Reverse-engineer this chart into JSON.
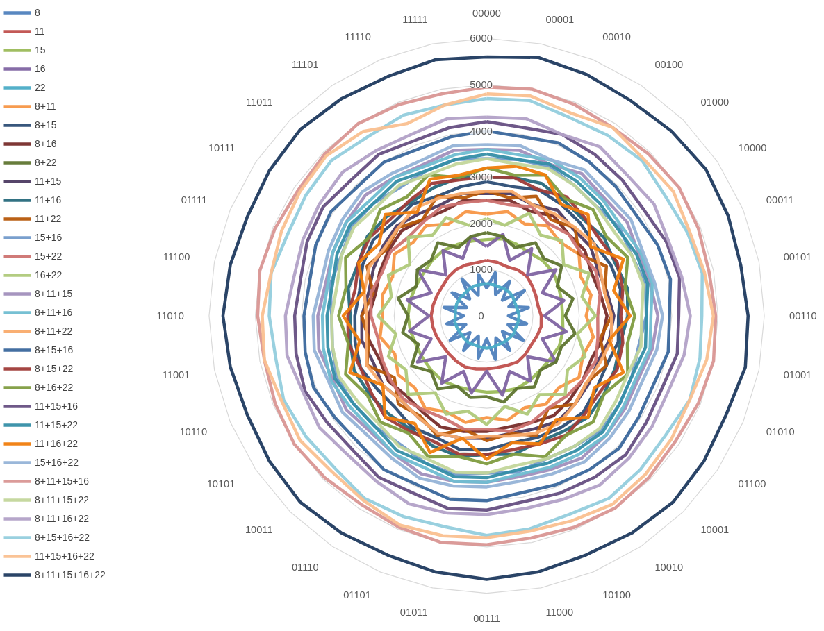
{
  "chart_data": {
    "type": "radar",
    "categories": [
      "00000",
      "00001",
      "00010",
      "00100",
      "01000",
      "10000",
      "00011",
      "00101",
      "00110",
      "01001",
      "01010",
      "01100",
      "10001",
      "10010",
      "10100",
      "11000",
      "00111",
      "01011",
      "01101",
      "01110",
      "10011",
      "10101",
      "10110",
      "11001",
      "11010",
      "11100",
      "01111",
      "10111",
      "11011",
      "11101",
      "11110",
      "11111"
    ],
    "ylim": [
      0,
      6000
    ],
    "yticks": [
      0,
      1000,
      2000,
      3000,
      4000,
      5000,
      6000
    ],
    "grid": true,
    "legend": "left",
    "line_style": "solid",
    "marker": "none",
    "series": [
      {
        "name": "8",
        "color": "#4f81bd",
        "values": [
          600,
          950,
          500,
          900,
          480,
          980,
          520,
          920,
          470,
          880,
          500,
          950,
          480,
          900,
          520,
          960,
          500,
          930,
          470,
          900,
          510,
          950,
          490,
          880,
          500,
          940,
          470,
          900,
          520,
          960,
          480,
          920
        ]
      },
      {
        "name": "11",
        "color": "#c0504d",
        "values": [
          1200,
          1180,
          1150,
          1200,
          1220,
          1180,
          1150,
          1130,
          1180,
          1200,
          1170,
          1150,
          1180,
          1200,
          1160,
          1140,
          1150,
          1170,
          1200,
          1180,
          1160,
          1150,
          1170,
          1190,
          1200,
          1180,
          1160,
          1150,
          1180,
          1200,
          1190,
          1170
        ]
      },
      {
        "name": "15",
        "color": "#9bbb59",
        "values": [
          1650,
          1700,
          1680,
          1650,
          1700,
          1720,
          1680,
          1650,
          1640,
          1680,
          1700,
          1660,
          1650,
          1680,
          1700,
          1670,
          1650,
          1640,
          1660,
          1700,
          1680,
          1660,
          1650,
          1680,
          1700,
          1690,
          1660,
          1650,
          1680,
          1700,
          1670,
          1650
        ]
      },
      {
        "name": "16",
        "color": "#8064a2",
        "values": [
          1500,
          1800,
          1300,
          1750,
          1250,
          1800,
          1300,
          1700,
          1250,
          1750,
          1300,
          1800,
          1250,
          1700,
          1300,
          1750,
          1200,
          1700,
          1300,
          1750,
          1250,
          1800,
          1300,
          1700,
          1250,
          1750,
          1300,
          1800,
          1250,
          1700,
          1350,
          1750
        ]
      },
      {
        "name": "22",
        "color": "#4bacc6",
        "values": [
          700,
          690,
          680,
          700,
          710,
          690,
          670,
          680,
          700,
          690,
          680,
          700,
          690,
          680,
          670,
          690,
          700,
          690,
          680,
          700,
          690,
          680,
          690,
          700,
          680,
          690,
          700,
          690,
          680,
          690,
          700,
          690
        ]
      },
      {
        "name": "8+11",
        "color": "#f79646",
        "values": [
          2200,
          2300,
          2150,
          2350,
          2250,
          2400,
          2200,
          2300,
          2150,
          2350,
          2250,
          2400,
          2200,
          2300,
          2150,
          2300,
          2200,
          2350,
          2250,
          2400,
          2200,
          2300,
          2150,
          2350,
          2250,
          2300,
          2200,
          2400,
          2250,
          2350,
          2150,
          2300
        ]
      },
      {
        "name": "8+15",
        "color": "#2c4d75",
        "values": [
          2900,
          2850,
          2950,
          2900,
          2850,
          2800,
          2900,
          2950,
          2850,
          2900,
          2800,
          2850,
          2950,
          2900,
          2850,
          2800,
          2900,
          2950,
          2850,
          2900,
          2800,
          2850,
          2950,
          2900,
          2850,
          2800,
          2900,
          2950,
          2850,
          2900,
          2800,
          2850
        ]
      },
      {
        "name": "8+16",
        "color": "#772c2a",
        "values": [
          2500,
          2550,
          2450,
          2600,
          2500,
          2550,
          2450,
          2500,
          2600,
          2550,
          2450,
          2500,
          2550,
          2600,
          2500,
          2450,
          2500,
          2550,
          2600,
          2500,
          2450,
          2550,
          2500,
          2600,
          2550,
          2450,
          2500,
          2550,
          2600,
          2500,
          2450,
          2550
        ]
      },
      {
        "name": "8+22",
        "color": "#5f7530",
        "values": [
          1800,
          1750,
          1600,
          1900,
          1750,
          1950,
          1650,
          1900,
          1700,
          1950,
          1750,
          1800,
          1650,
          1850,
          1700,
          1900,
          1750,
          1800,
          1650,
          1900,
          1700,
          1950,
          1600,
          1850,
          1700,
          1950,
          1650,
          1800,
          1700,
          1900,
          1600,
          1750
        ]
      },
      {
        "name": "11+15",
        "color": "#4d3b62",
        "values": [
          2650,
          2700,
          2600,
          2750,
          2650,
          2700,
          2600,
          2650,
          2750,
          2700,
          2600,
          2650,
          2700,
          2750,
          2650,
          2600,
          2650,
          2700,
          2750,
          2650,
          2600,
          2700,
          2650,
          2750,
          2700,
          2600,
          2650,
          2700,
          2750,
          2650,
          2600,
          2700
        ]
      },
      {
        "name": "11+16",
        "color": "#276a7c",
        "values": [
          3000,
          3050,
          3100,
          3000,
          2950,
          3050,
          3000,
          3100,
          3050,
          2950,
          3000,
          3050,
          3100,
          3000,
          2950,
          3050,
          3000,
          3100,
          3050,
          2950,
          3000,
          3050,
          3100,
          3000,
          2950,
          3050,
          3000,
          3100,
          3050,
          2950,
          3000,
          3050
        ]
      },
      {
        "name": "11+22",
        "color": "#b65708",
        "values": [
          2700,
          2600,
          2800,
          2500,
          2700,
          2400,
          2800,
          2600,
          2700,
          2500,
          2800,
          2600,
          2700,
          2400,
          2800,
          2600,
          2700,
          2500,
          2800,
          2600,
          2700,
          2400,
          2800,
          2600,
          2700,
          2500,
          2800,
          2600,
          2700,
          2500,
          2800,
          2600
        ]
      },
      {
        "name": "15+16",
        "color": "#729aca",
        "values": [
          3400,
          3450,
          3500,
          3400,
          3350,
          3450,
          3400,
          3500,
          3450,
          3350,
          3400,
          3450,
          3500,
          3400,
          3350,
          3450,
          3400,
          3500,
          3450,
          3350,
          3400,
          3450,
          3500,
          3400,
          3350,
          3450,
          3400,
          3500,
          3450,
          3350,
          3400,
          3450
        ]
      },
      {
        "name": "15+22",
        "color": "#cd7371",
        "values": [
          2500,
          2450,
          2550,
          2400,
          2500,
          2450,
          2550,
          2500,
          2400,
          2450,
          2550,
          2500,
          2450,
          2400,
          2500,
          2550,
          2450,
          2500,
          2400,
          2450,
          2550,
          2500,
          2450,
          2400,
          2500,
          2550,
          2450,
          2500,
          2400,
          2450,
          2550,
          2500
        ]
      },
      {
        "name": "16+22",
        "color": "#afc97a",
        "values": [
          2100,
          2000,
          2400,
          2100,
          2300,
          2000,
          2400,
          2100,
          2350,
          2000,
          2300,
          2100,
          2400,
          2050,
          2300,
          2000,
          2350,
          2100,
          2300,
          2000,
          2400,
          2100,
          2300,
          2000,
          2350,
          2100,
          2300,
          2000,
          2400,
          2100,
          2300,
          2000
        ]
      },
      {
        "name": "8+11+15",
        "color": "#a18fbc",
        "values": [
          3600,
          3650,
          3550,
          3700,
          3600,
          3650,
          3550,
          3600,
          3700,
          3650,
          3550,
          3600,
          3650,
          3700,
          3600,
          3550,
          3600,
          3650,
          3700,
          3600,
          3550,
          3650,
          3600,
          3700,
          3650,
          3550,
          3600,
          3650,
          3700,
          3600,
          3550,
          3650
        ]
      },
      {
        "name": "8+11+16",
        "color": "#6fbdd1",
        "values": [
          3600,
          3550,
          3650,
          3600,
          3550,
          3500,
          3600,
          3650,
          3550,
          3600,
          3500,
          3550,
          3650,
          3600,
          3550,
          3500,
          3600,
          3650,
          3550,
          3600,
          3500,
          3550,
          3650,
          3600,
          3550,
          3500,
          3600,
          3650,
          3550,
          3600,
          3500,
          3550
        ]
      },
      {
        "name": "8+11+22",
        "color": "#f9ab6b",
        "values": [
          2700,
          2750,
          2600,
          2650,
          2700,
          2800,
          2650,
          2600,
          2700,
          2750,
          2650,
          2600,
          2700,
          2800,
          2750,
          2650,
          2600,
          2700,
          2750,
          2650,
          2600,
          2700,
          2800,
          2650,
          2600,
          2700,
          2750,
          2650,
          2700,
          2800,
          2750,
          2700
        ]
      },
      {
        "name": "8+15+16",
        "color": "#3a679c",
        "values": [
          4000,
          3950,
          4050,
          4000,
          3950,
          3900,
          4000,
          4050,
          3950,
          4000,
          3900,
          3950,
          4050,
          4000,
          3950,
          3900,
          4000,
          4050,
          3950,
          4000,
          3900,
          3950,
          4050,
          4000,
          3950,
          3900,
          4000,
          4050,
          3950,
          4000,
          3900,
          3950
        ]
      },
      {
        "name": "8+15+22",
        "color": "#9f3b38",
        "values": [
          3000,
          3050,
          2950,
          3100,
          3000,
          2950,
          3050,
          3000,
          2900,
          3000,
          3050,
          2950,
          3000,
          3100,
          3000,
          2950,
          3000,
          3050,
          2950,
          3000,
          3100,
          3000,
          2950,
          3050,
          3000,
          2900,
          3000,
          3050,
          2950,
          3000,
          3100,
          3000
        ]
      },
      {
        "name": "8+16+22",
        "color": "#7f9c40",
        "values": [
          3200,
          3100,
          3300,
          3050,
          3250,
          3100,
          3300,
          3050,
          3200,
          3100,
          3300,
          3050,
          3250,
          3100,
          3300,
          3050,
          3200,
          3100,
          3300,
          3050,
          3250,
          3100,
          3300,
          3050,
          3200,
          3100,
          3300,
          3050,
          3250,
          3100,
          3300,
          3050
        ]
      },
      {
        "name": "11+15+16",
        "color": "#664f82",
        "values": [
          4200,
          4150,
          4250,
          4200,
          4150,
          4100,
          4200,
          4250,
          4150,
          4200,
          4100,
          4150,
          4250,
          4200,
          4150,
          4100,
          4200,
          4250,
          4150,
          4200,
          4100,
          4150,
          4250,
          4200,
          4150,
          4100,
          4200,
          4250,
          4150,
          4200,
          4100,
          4150
        ]
      },
      {
        "name": "11+15+22",
        "color": "#358ea6",
        "values": [
          3500,
          3450,
          3550,
          3500,
          3450,
          3400,
          3500,
          3550,
          3450,
          3500,
          3400,
          3450,
          3550,
          3500,
          3450,
          3400,
          3500,
          3550,
          3450,
          3500,
          3400,
          3450,
          3550,
          3500,
          3450,
          3400,
          3500,
          3550,
          3450,
          3500,
          3400,
          3450
        ]
      },
      {
        "name": "11+16+22",
        "color": "#f07d0c",
        "values": [
          3200,
          3300,
          3300,
          2900,
          3100,
          2700,
          3200,
          2800,
          3100,
          2700,
          3200,
          2800,
          3100,
          2700,
          3000,
          2800,
          3100,
          2700,
          3200,
          2800,
          3100,
          2700,
          3200,
          2800,
          3100,
          2700,
          3000,
          2800,
          3100,
          2700,
          3200,
          3100
        ]
      },
      {
        "name": "15+16+22",
        "color": "#95b3d7",
        "values": [
          3700,
          3750,
          3650,
          3800,
          3700,
          3750,
          3650,
          3700,
          3800,
          3750,
          3650,
          3700,
          3750,
          3800,
          3700,
          3650,
          3700,
          3750,
          3800,
          3700,
          3650,
          3750,
          3700,
          3800,
          3750,
          3650,
          3700,
          3750,
          3800,
          3700,
          3650,
          3750
        ]
      },
      {
        "name": "8+11+15+16",
        "color": "#d99694",
        "values": [
          4950,
          5000,
          4950,
          4900,
          4950,
          5000,
          4950,
          4900,
          4950,
          5000,
          4950,
          4900,
          4950,
          5000,
          4950,
          4900,
          4950,
          5000,
          4950,
          4900,
          4950,
          5000,
          4950,
          4900,
          4950,
          5000,
          4950,
          4900,
          4950,
          5000,
          4950,
          4900
        ]
      },
      {
        "name": "8+11+15+22",
        "color": "#c3d69b",
        "values": [
          3400,
          3350,
          3450,
          3400,
          3350,
          3300,
          3400,
          3450,
          3350,
          3400,
          3300,
          3350,
          3450,
          3400,
          3350,
          3300,
          3400,
          3450,
          3350,
          3400,
          3300,
          3350,
          3450,
          3400,
          3350,
          3300,
          3400,
          3450,
          3350,
          3400,
          3300,
          3350
        ]
      },
      {
        "name": "8+11+16+22",
        "color": "#b2a1c7",
        "values": [
          4300,
          4350,
          4250,
          4400,
          4300,
          4350,
          4250,
          4300,
          4400,
          4350,
          4250,
          4300,
          4350,
          4400,
          4300,
          4250,
          4300,
          4350,
          4400,
          4300,
          4250,
          4350,
          4300,
          4400,
          4350,
          4250,
          4300,
          4350,
          4400,
          4300,
          4250,
          4350
        ]
      },
      {
        "name": "8+15+16+22",
        "color": "#93cddd",
        "values": [
          4700,
          4750,
          4650,
          4700,
          4750,
          4650,
          4700,
          4750,
          4650,
          4700,
          4750,
          4650,
          4700,
          4750,
          4650,
          4700,
          4750,
          4650,
          4700,
          4750,
          4650,
          4700,
          4750,
          4650,
          4700,
          4750,
          4650,
          4700,
          4750,
          4650,
          4700,
          4650
        ]
      },
      {
        "name": "11+15+16+22",
        "color": "#fac090",
        "values": [
          4800,
          4850,
          4750,
          4900,
          4800,
          4850,
          4750,
          4800,
          4900,
          4850,
          4750,
          4800,
          4850,
          4900,
          4800,
          4750,
          4800,
          4850,
          4900,
          4800,
          4750,
          4850,
          4800,
          4900,
          4850,
          4750,
          4800,
          4850,
          4900,
          4800,
          4500,
          4650
        ]
      },
      {
        "name": "8+11+15+16+22",
        "color": "#1f3a5f",
        "values": [
          5600,
          5700,
          5650,
          5600,
          5650,
          5700,
          5650,
          5600,
          5650,
          5700,
          5600,
          5650,
          5700,
          5650,
          5600,
          5650,
          5700,
          5650,
          5600,
          5650,
          5700,
          5650,
          5600,
          5650,
          5700,
          5650,
          5600,
          5650,
          5700,
          5650,
          5600,
          5650
        ]
      }
    ]
  }
}
